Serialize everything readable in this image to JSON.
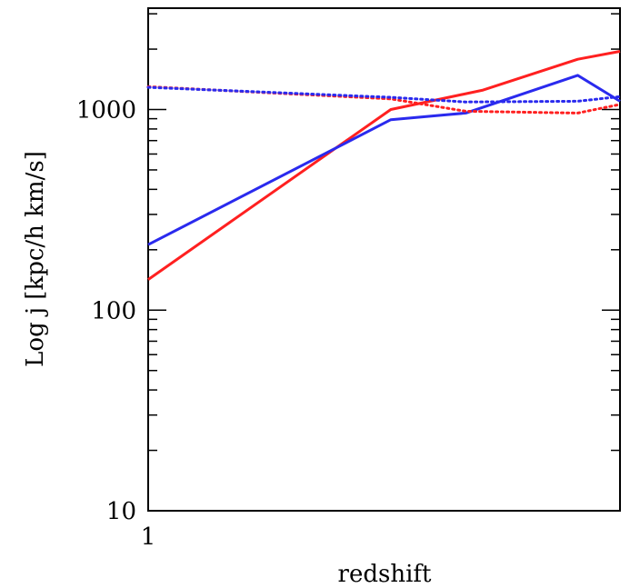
{
  "chart_data": {
    "type": "line",
    "title": "",
    "xlabel": "redshift",
    "ylabel": "Log j [kpc/h km/s]",
    "yscale": "log",
    "xscale": "log",
    "ylim": [
      10,
      3200
    ],
    "xlim": [
      1,
      2.2
    ],
    "x_tick_labels": [
      {
        "value": 1,
        "label": "1"
      }
    ],
    "y_tick_labels": [
      {
        "value": 10,
        "label": "10"
      },
      {
        "value": 100,
        "label": "100"
      },
      {
        "value": 1000,
        "label": "1000"
      }
    ],
    "grid": false,
    "legend": "none",
    "series": [
      {
        "color": "#ff2020",
        "dash": "solid",
        "x": [
          1.0,
          1.5,
          1.75,
          2.05,
          2.2
        ],
        "y": [
          142,
          1000,
          1250,
          1780,
          1950
        ]
      },
      {
        "color": "#2a2aee",
        "dash": "solid",
        "x": [
          1.0,
          1.5,
          1.7,
          2.05,
          2.2
        ],
        "y": [
          212,
          890,
          960,
          1480,
          1100
        ]
      },
      {
        "color": "#ff2020",
        "dash": "dotted",
        "x": [
          1.0,
          1.5,
          1.7,
          2.05,
          2.2
        ],
        "y": [
          1300,
          1130,
          980,
          960,
          1060
        ]
      },
      {
        "color": "#2a2aee",
        "dash": "dotted",
        "x": [
          1.0,
          1.5,
          1.7,
          2.05,
          2.2
        ],
        "y": [
          1290,
          1150,
          1090,
          1100,
          1160
        ]
      }
    ]
  }
}
